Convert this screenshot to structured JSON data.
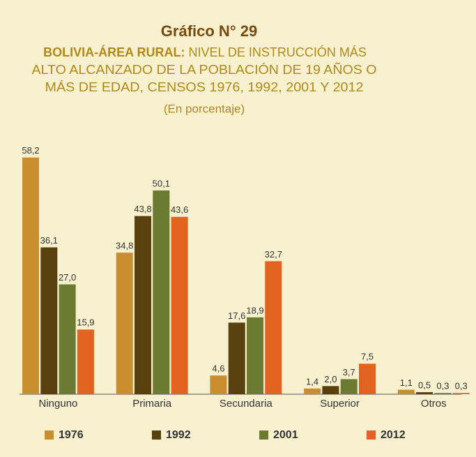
{
  "chart_data": {
    "type": "bar",
    "title": "Gráfico N° 29",
    "subtitle_bold": "BOLIVIA-ÁREA RURAL:",
    "subtitle_lines": [
      "NIVEL DE INSTRUCCIÓN MÁS",
      "ALTO ALCANZADO DE LA POBLACIÓN DE 19 AÑOS O",
      "MÁS DE EDAD, CENSOS 1976, 1992, 2001 Y 2012"
    ],
    "unit_note": "(En porcentaje)",
    "categories": [
      "Ninguno",
      "Primaria",
      "Secundaria",
      "Superior",
      "Otros"
    ],
    "series": [
      {
        "name": "1976",
        "color": "#c98f2e",
        "values": [
          58.2,
          34.8,
          4.6,
          1.4,
          1.1
        ],
        "value_labels": [
          "58,2",
          "34,8",
          "4,6",
          "1,4",
          "1,1"
        ]
      },
      {
        "name": "1992",
        "color": "#5a3f0f",
        "values": [
          36.1,
          43.8,
          17.6,
          2.0,
          0.5
        ],
        "value_labels": [
          "36,1",
          "43,8",
          "17,6",
          "2,0",
          "0,5"
        ]
      },
      {
        "name": "2001",
        "color": "#6d7a32",
        "values": [
          27.0,
          50.1,
          18.9,
          3.7,
          0.3
        ],
        "value_labels": [
          "27,0",
          "50,1",
          "18,9",
          "3,7",
          "0,3"
        ]
      },
      {
        "name": "2012",
        "color": "#e2621f",
        "values": [
          15.9,
          43.6,
          32.7,
          7.5,
          0.3
        ],
        "value_labels": [
          "15,9",
          "43,6",
          "32,7",
          "7,5",
          "0,3"
        ]
      }
    ],
    "legend": "bottom"
  }
}
